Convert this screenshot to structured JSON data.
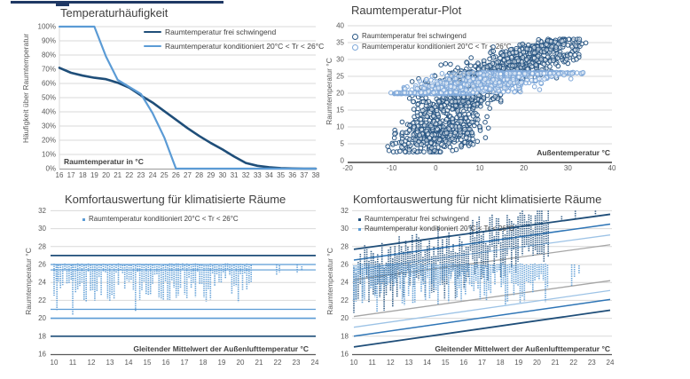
{
  "accent_bar": {
    "color": "#1F3864"
  },
  "colors": {
    "title_text": "#404040",
    "tick_text": "#595959",
    "gridline": "#D9D9D9",
    "axis_gray": "#A6A6A6",
    "axis_dark": "#404040",
    "dark_blue": "#1F4E79",
    "medium_blue": "#2E75B6",
    "light_blue": "#5B9BD5",
    "lighter_blue": "#9DC3E6",
    "gray_line": "#A6A6A6",
    "scatter_dark": "#2A5784",
    "scatter_light": "#7FA8D9"
  },
  "chart_data": [
    {
      "id": "temperaturhaeufigkeit",
      "type": "line",
      "title": "Temperaturhäufigkeit",
      "xlabel": "Raumtemperatur in °C",
      "ylabel": "Häufigkeit über Raumtemperatur",
      "xlim": [
        16,
        38
      ],
      "ylim": [
        0,
        100
      ],
      "xticks": [
        16,
        17,
        18,
        19,
        20,
        21,
        22,
        23,
        24,
        25,
        26,
        27,
        28,
        29,
        30,
        31,
        32,
        33,
        34,
        35,
        36,
        37,
        38
      ],
      "yticks": [
        0,
        10,
        20,
        30,
        40,
        50,
        60,
        70,
        80,
        90,
        100
      ],
      "ytick_suffix": "%",
      "grid": "horizontal",
      "legend_position": "top-right-inside",
      "categories": [
        16,
        17,
        18,
        19,
        20,
        21,
        22,
        23,
        24,
        25,
        26,
        27,
        28,
        29,
        30,
        31,
        32,
        33,
        34,
        35,
        36,
        37,
        38
      ],
      "series": [
        {
          "name": "Raumtemperatur frei schwingend",
          "color": "#1F4E79",
          "width": 2.6,
          "values": [
            71,
            67.5,
            65.5,
            64,
            63,
            60.5,
            57,
            51.5,
            46.5,
            40.5,
            34.5,
            28.5,
            23,
            18,
            13.5,
            8.5,
            4,
            2,
            1,
            0.4,
            0.1,
            0,
            0
          ]
        },
        {
          "name": "Raumtemperatur konditioniert 20°C < Tr < 26°C",
          "color": "#5B9BD5",
          "width": 2.2,
          "values": [
            100,
            100,
            100,
            100,
            79,
            62.5,
            57.5,
            52.5,
            39,
            22,
            0,
            0,
            0,
            0,
            0,
            0,
            0,
            0,
            0,
            0,
            0,
            0,
            0
          ]
        }
      ]
    },
    {
      "id": "raumtemperatur_plot",
      "type": "scatter",
      "title": "Raumtemperatur-Plot",
      "xlabel": "Außentemperatur °C",
      "ylabel": "Raumtemperatur °C",
      "xlim": [
        -20,
        40
      ],
      "ylim": [
        0,
        40
      ],
      "xticks": [
        -20,
        -10,
        0,
        10,
        20,
        30,
        40
      ],
      "yticks": [
        0,
        5,
        10,
        15,
        20,
        25,
        30,
        35,
        40
      ],
      "grid": "horizontal",
      "legend_position": "top-left-inside",
      "marker": "open-circle",
      "series": [
        {
          "name": "Raumtemperatur frei schwingend",
          "color": "#2A5784",
          "seed": 101,
          "clusters": [
            {
              "n": 430,
              "cx": 1,
              "sx": 5,
              "xmin": -11,
              "xmax": 13,
              "b": 8.3,
              "m": 0.22,
              "sy": 3.1,
              "ymin": 2.6,
              "ymax": 16.5
            },
            {
              "n": 180,
              "cx": 5,
              "sx": 5.5,
              "xmin": -6,
              "xmax": 15,
              "b": 16.3,
              "m": 0.18,
              "sy": 1.5,
              "ymin": 13,
              "ymax": 20.5
            },
            {
              "n": 540,
              "cx": 16,
              "sx": 9.5,
              "xmin": -6,
              "xmax": 34.5,
              "b": 22,
              "m": 0.33,
              "sy": 2.3,
              "ymin": 17.5,
              "ymax": 35.5
            },
            {
              "n": 130,
              "cx": 24,
              "sx": 6,
              "xmin": 13,
              "xmax": 34,
              "b": 27.8,
              "m": 0.25,
              "sy": 1,
              "ymin": 25,
              "ymax": 36
            }
          ]
        },
        {
          "name": "Raumtemperatur konditioniert 20°C < Tr < 26°C",
          "color": "#7FA8D9",
          "seed": 202,
          "clusters": [
            {
              "n": 160,
              "cx": -2,
              "sx": 5,
              "xmin": -11,
              "xmax": 8.5,
              "b": 20,
              "m": 0,
              "sy": 0.12,
              "ymin": 19.85,
              "ymax": 20.35
            },
            {
              "n": 210,
              "cx": 21,
              "sx": 7,
              "xmin": 8.5,
              "xmax": 33.5,
              "b": 26,
              "m": 0,
              "sy": 0.12,
              "ymin": 25.7,
              "ymax": 26.15
            },
            {
              "n": 420,
              "cx": 10,
              "sx": 9,
              "xmin": -9,
              "xmax": 31,
              "b": 21.2,
              "m": 0.17,
              "sy": 1.7,
              "ymin": 20.15,
              "ymax": 25.85
            }
          ]
        }
      ]
    },
    {
      "id": "komfort_klimatisierte_raeume",
      "type": "column-streaks",
      "title": "Komfortauswertung für klimatisierte Räume",
      "xlabel": "Gleitender Mittelwert der Außenlufttemperatur °C",
      "ylabel": "Raumtemperatur °C",
      "xlim": [
        10,
        24
      ],
      "ylim": [
        16,
        32
      ],
      "xticks": [
        10,
        11,
        12,
        13,
        14,
        15,
        16,
        17,
        18,
        19,
        20,
        21,
        22,
        23,
        24
      ],
      "yticks": [
        16,
        18,
        20,
        22,
        24,
        26,
        28,
        30,
        32
      ],
      "grid": "horizontal",
      "legend_position": "top-left-inside",
      "hlines": [
        {
          "y": 27,
          "color": "#1F4E79",
          "width": 1.7
        },
        {
          "y": 18,
          "color": "#1F4E79",
          "width": 1.7
        },
        {
          "y": 26,
          "color": "#5B9BD5",
          "width": 1.2
        },
        {
          "y": 25.4,
          "color": "#5B9BD5",
          "width": 1.2
        },
        {
          "y": 21,
          "color": "#5B9BD5",
          "width": 1.2
        },
        {
          "y": 20,
          "color": "#5B9BD5",
          "width": 1.6
        }
      ],
      "series": [
        {
          "name": "Raumtemperatur konditioniert 20°C < Tr < 26°C",
          "color": "#5B9BD5",
          "seed": 303,
          "streaks": {
            "x_min": 10,
            "x_max": 20.62,
            "step": 0.115,
            "top_base": 26,
            "top_jitter": 0.12,
            "depth_min": 0.7,
            "depth_max": 4.4,
            "deep_prob": 0.06,
            "deep_extra": 1.0,
            "y_min": 20.3
          },
          "extra_streaks": [
            {
              "x": 10.15,
              "top": 26,
              "bottom": 20.8
            },
            {
              "x": 11.0,
              "top": 26,
              "bottom": 20.35
            },
            {
              "x": 21.95,
              "top": 26,
              "bottom": 24.85
            },
            {
              "x": 22.1,
              "top": 25.9,
              "bottom": 25.1
            },
            {
              "x": 23.05,
              "top": 26,
              "bottom": 25.0
            },
            {
              "x": 23.3,
              "top": 25.8,
              "bottom": 25.3
            }
          ]
        }
      ]
    },
    {
      "id": "komfort_nicht_klimatisierte_raeume",
      "type": "column-streaks",
      "title": "Komfortauswertung für nicht klimatisierte Räume",
      "xlabel": "Gleitender Mittelwert der Außenlufttemperatur °C",
      "ylabel": "Raumtemperatur °C",
      "xlim": [
        10,
        24
      ],
      "ylim": [
        16,
        32
      ],
      "xticks": [
        10,
        11,
        12,
        13,
        14,
        15,
        16,
        17,
        18,
        19,
        20,
        21,
        22,
        23,
        24
      ],
      "yticks": [
        16,
        18,
        20,
        22,
        24,
        26,
        28,
        30,
        32
      ],
      "grid": "horizontal",
      "legend_position": "top-left-inside",
      "diag_lines": [
        {
          "x0": 10,
          "y0": 27.7,
          "x1": 24,
          "y1": 31.6,
          "color": "#1F4E79",
          "width": 1.8
        },
        {
          "x0": 10,
          "y0": 26.5,
          "x1": 24,
          "y1": 30.5,
          "color": "#2E75B6",
          "width": 1.5
        },
        {
          "x0": 10,
          "y0": 25.4,
          "x1": 24,
          "y1": 29.3,
          "color": "#9DC3E6",
          "width": 1.3
        },
        {
          "x0": 10,
          "y0": 24.3,
          "x1": 24,
          "y1": 28.2,
          "color": "#A6A6A6",
          "width": 1.3
        },
        {
          "x0": 10,
          "y0": 20.2,
          "x1": 24,
          "y1": 24.2,
          "color": "#A6A6A6",
          "width": 1.3
        },
        {
          "x0": 10,
          "y0": 19.0,
          "x1": 24,
          "y1": 23.1,
          "color": "#9DC3E6",
          "width": 1.3
        },
        {
          "x0": 10,
          "y0": 18.0,
          "x1": 24,
          "y1": 22.1,
          "color": "#2E75B6",
          "width": 1.5
        },
        {
          "x0": 10,
          "y0": 16.8,
          "x1": 24,
          "y1": 20.9,
          "color": "#1F4E79",
          "width": 1.8
        }
      ],
      "series": [
        {
          "name": "Raumtemperatur frei schwingend",
          "color": "#24527E",
          "seed": 404,
          "streaks": {
            "x_min": 10,
            "x_max": 20.62,
            "step": 0.118,
            "top_slope": 0.5,
            "top_intercept": 21.2,
            "top_jitter": 1.8,
            "depth_min": 2.6,
            "depth_max": 5.4,
            "y_max": 32
          },
          "extra_streaks": [
            {
              "x": 21.35,
              "top": 31.4,
              "bottom": 30.8
            },
            {
              "x": 22.1,
              "top": 32,
              "bottom": 31.2
            },
            {
              "x": 23.2,
              "top": 32,
              "bottom": 31.5
            }
          ]
        },
        {
          "name": "Raumtemperatur konditioniert 20°C < Tr < 26°C",
          "color": "#5B9BD5",
          "seed": 505,
          "streaks": {
            "x_min": 10,
            "x_max": 20.62,
            "step": 0.115,
            "top_base": 26,
            "top_jitter": 0.12,
            "depth_min": 0.7,
            "depth_max": 4.6,
            "deep_prob": 0.06,
            "deep_extra": 0.9,
            "y_min": 20.5
          },
          "extra_streaks": [
            {
              "x": 21.9,
              "top": 26,
              "bottom": 23.6
            },
            {
              "x": 22.05,
              "top": 26,
              "bottom": 24.6
            },
            {
              "x": 22.3,
              "top": 25.9,
              "bottom": 25.0
            }
          ]
        }
      ]
    }
  ]
}
